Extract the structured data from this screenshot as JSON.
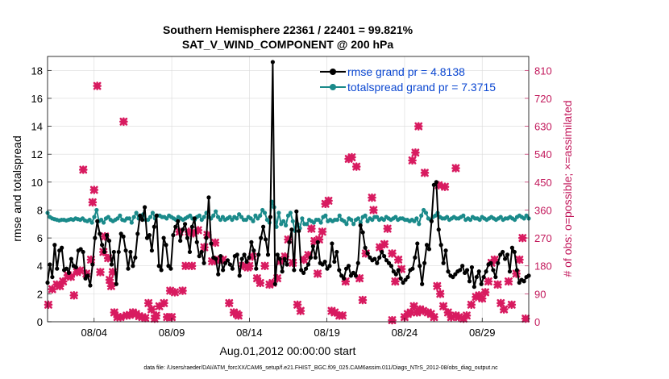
{
  "chart_data": {
    "type": "line",
    "title": "Southern Hemisphere 22361 / 22401 = 99.821%",
    "subtitle": "SAT_V_WIND_COMPONENT @ 200 hPa",
    "xlabel": "Aug.01,2012 00:00:00 start",
    "ylabel": "rmse and totalspread",
    "ylabel_right": "# of obs: o=possible; ×=assimilated",
    "footer": "data file: /Users/raeder/DAI/ATM_forcXX/CAM6_setup/f.e21.FHIST_BGC.f09_025.CAM6assim.011/Diags_NTrS_2012-08/obs_diag_output.nc",
    "x_ticks": [
      {
        "day": 4,
        "label": "08/04"
      },
      {
        "day": 9,
        "label": "08/09"
      },
      {
        "day": 14,
        "label": "08/14"
      },
      {
        "day": 19,
        "label": "08/19"
      },
      {
        "day": 24,
        "label": "08/24"
      },
      {
        "day": 29,
        "label": "08/29"
      }
    ],
    "xlim": [
      1,
      32
    ],
    "ylim": [
      0,
      19
    ],
    "y_ticks": [
      0,
      2,
      4,
      6,
      8,
      10,
      12,
      14,
      16,
      18
    ],
    "y2lim": [
      0,
      855
    ],
    "y2_ticks": [
      0,
      90,
      180,
      270,
      360,
      450,
      540,
      630,
      720,
      810
    ],
    "legend_position": "top-right",
    "colors": {
      "rmse": "#000000",
      "spread": "#1a8a8a",
      "obs": "#d81b60",
      "right_axis": "#c2185b",
      "legend_text": "#0b47d1"
    },
    "series": [
      {
        "name": "rmse grand pr = 4.8138",
        "key": "rmse",
        "values": [
          2.8,
          4.1,
          3.2,
          5.5,
          3.8,
          5.1,
          5.3,
          3.7,
          3.8,
          3.5,
          4.5,
          4.0,
          3.9,
          5.1,
          5.2,
          5.0,
          3.1,
          3.3,
          2.6,
          4.1,
          6.0,
          7.2,
          6.3,
          5.5,
          5.0,
          6.2,
          5.8,
          4.1,
          5.0,
          2.7,
          5.0,
          6.3,
          6.1,
          5.1,
          3.8,
          5.0,
          4.0,
          4.6,
          6.3,
          7.6,
          7.3,
          8.2,
          6.0,
          6.2,
          5.1,
          6.8,
          7.6,
          4.0,
          3.7,
          6.0,
          5.5,
          4.0,
          3.8,
          6.2,
          6.8,
          7.2,
          5.8,
          6.6,
          7.0,
          6.0,
          5.0,
          6.8,
          7.4,
          5.7,
          4.7,
          5.0,
          4.2,
          6.0,
          8.9,
          5.6,
          4.6,
          4.5,
          3.4,
          4.7,
          3.7,
          4.2,
          4.4,
          4.1,
          3.8,
          4.7,
          4.8,
          3.3,
          4.5,
          4.8,
          4.3,
          4.6,
          5.7,
          5.1,
          3.8,
          4.8,
          6.0,
          6.8,
          5.9,
          4.8,
          7.5,
          18.6,
          2.7,
          4.8,
          4.5,
          3.6,
          4.5,
          4.1,
          5.7,
          6.6,
          3.7,
          7.9,
          6.5,
          3.7,
          3.5,
          3.8,
          4.1,
          4.6,
          5.4,
          4.6,
          5.7,
          4.2,
          4.1,
          4.3,
          3.8,
          4.0,
          5.6,
          4.3,
          5.0,
          3.7,
          3.3,
          3.1,
          3.8,
          4.0,
          3.3,
          3.5,
          3.3,
          4.2,
          6.9,
          6.4,
          5.3,
          4.9,
          4.6,
          4.4,
          4.5,
          4.2,
          4.6,
          5.0,
          4.7,
          4.4,
          4.2,
          4.0,
          3.6,
          3.4,
          3.7,
          3.1,
          2.8,
          3.0,
          3.2,
          3.7,
          3.8,
          4.6,
          5.6,
          4.0,
          2.7,
          4.2,
          5.5,
          5.2,
          7.2,
          9.8,
          10.0,
          6.6,
          5.5,
          4.2,
          5.1,
          3.6,
          3.3,
          3.2,
          3.4,
          3.6,
          3.7,
          4.0,
          3.5,
          3.7,
          2.9,
          3.9,
          2.5,
          3.2,
          3.6,
          2.7,
          3.2,
          3.6,
          4.1,
          4.2,
          3.7,
          3.2,
          4.2,
          4.8,
          5.0,
          4.5,
          4.8,
          3.6,
          5.3,
          5.0,
          3.7,
          2.8,
          3.0,
          2.9,
          3.2,
          3.3
        ]
      },
      {
        "name": "totalspread grand pr = 7.3715",
        "key": "spread",
        "values": [
          7.8,
          7.5,
          7.4,
          7.35,
          7.3,
          7.25,
          7.3,
          7.3,
          7.25,
          7.3,
          7.35,
          7.3,
          7.4,
          7.35,
          7.3,
          7.4,
          7.25,
          7.2,
          7.3,
          7.1,
          7.5,
          8.0,
          7.2,
          7.3,
          7.1,
          7.4,
          7.5,
          7.3,
          7.2,
          7.3,
          7.4,
          7.6,
          7.3,
          7.25,
          7.4,
          7.4,
          7.1,
          7.5,
          7.8,
          7.4,
          7.6,
          7.7,
          7.3,
          7.3,
          7.5,
          7.8,
          7.4,
          7.6,
          7.6,
          7.5,
          7.5,
          7.4,
          7.6,
          7.5,
          7.4,
          7.3,
          7.5,
          7.4,
          7.3,
          7.4,
          7.5,
          7.6,
          7.4,
          7.3,
          7.5,
          7.6,
          7.3,
          7.5,
          7.8,
          7.5,
          7.4,
          7.6,
          7.9,
          7.5,
          7.3,
          7.5,
          7.3,
          7.4,
          7.5,
          7.3,
          7.5,
          7.4,
          7.7,
          7.5,
          7.3,
          7.3,
          7.5,
          7.4,
          7.2,
          7.6,
          7.4,
          7.6,
          8.0,
          7.8,
          7.3,
          7.1,
          8.6,
          8.2,
          6.8,
          7.8,
          7.0,
          7.2,
          6.9,
          7.6,
          7.8,
          7.2,
          6.5,
          7.0,
          6.7,
          7.4,
          7.0,
          7.0,
          7.3,
          7.2,
          7.1,
          7.3,
          7.3,
          7.1,
          7.5,
          7.6,
          7.2,
          7.3,
          7.2,
          7.3,
          7.3,
          7.6,
          7.3,
          7.2,
          7.0,
          7.4,
          7.3,
          7.0,
          7.3,
          7.4,
          7.1,
          7.5,
          7.6,
          7.2,
          7.4,
          7.3,
          7.5,
          7.5,
          7.3,
          7.4,
          7.3,
          7.5,
          7.4,
          7.3,
          7.4,
          7.5,
          7.3,
          7.4,
          7.4,
          7.3,
          7.3,
          7.2,
          7.3,
          7.2,
          7.4,
          7.0,
          7.6,
          8.0,
          7.8,
          7.4,
          7.3,
          7.5,
          7.6,
          7.8,
          7.5,
          7.4,
          7.4,
          7.5,
          7.3,
          7.4,
          7.5,
          7.4,
          7.4,
          7.5,
          7.6,
          7.3,
          7.4,
          7.3,
          7.5,
          7.4,
          7.4,
          7.3,
          7.5,
          7.4,
          7.3,
          7.4,
          7.5,
          7.4,
          7.3,
          7.4,
          7.5,
          7.3,
          7.4,
          7.4,
          7.5,
          7.4,
          7.3,
          7.5,
          7.6,
          7.5,
          7.4,
          7.6,
          7.4
        ]
      }
    ],
    "obs_assimilated": {
      "name": "# of obs assimilated",
      "points": [
        {
          "day": 1.05,
          "count": 55
        },
        {
          "day": 1.3,
          "count": 105
        },
        {
          "day": 1.6,
          "count": 120
        },
        {
          "day": 1.8,
          "count": 115
        },
        {
          "day": 2.0,
          "count": 130
        },
        {
          "day": 2.3,
          "count": 150
        },
        {
          "day": 2.5,
          "count": 145
        },
        {
          "day": 2.7,
          "count": 85
        },
        {
          "day": 2.9,
          "count": 160
        },
        {
          "day": 3.1,
          "count": 165
        },
        {
          "day": 3.3,
          "count": 490
        },
        {
          "day": 3.5,
          "count": 155
        },
        {
          "day": 3.8,
          "count": 200
        },
        {
          "day": 3.9,
          "count": 385
        },
        {
          "day": 4.0,
          "count": 425
        },
        {
          "day": 4.2,
          "count": 760
        },
        {
          "day": 4.4,
          "count": 160
        },
        {
          "day": 4.6,
          "count": 225
        },
        {
          "day": 4.7,
          "count": 275
        },
        {
          "day": 4.9,
          "count": 205
        },
        {
          "day": 5.0,
          "count": 135
        },
        {
          "day": 5.1,
          "count": 115
        },
        {
          "day": 5.2,
          "count": 160
        },
        {
          "day": 5.3,
          "count": 30
        },
        {
          "day": 5.5,
          "count": 15
        },
        {
          "day": 5.7,
          "count": 15
        },
        {
          "day": 5.9,
          "count": 645
        },
        {
          "day": 6.1,
          "count": 20
        },
        {
          "day": 6.3,
          "count": 22
        },
        {
          "day": 6.5,
          "count": 30
        },
        {
          "day": 6.7,
          "count": 25
        },
        {
          "day": 6.9,
          "count": 18
        },
        {
          "day": 7.1,
          "count": 15
        },
        {
          "day": 7.3,
          "count": 12
        },
        {
          "day": 7.5,
          "count": 60
        },
        {
          "day": 7.7,
          "count": 40
        },
        {
          "day": 7.9,
          "count": 10
        },
        {
          "day": 8.0,
          "count": 20
        },
        {
          "day": 8.2,
          "count": 50
        },
        {
          "day": 8.5,
          "count": 60
        },
        {
          "day": 8.7,
          "count": 15
        },
        {
          "day": 8.9,
          "count": 100
        },
        {
          "day": 9.0,
          "count": 15
        },
        {
          "day": 9.2,
          "count": 95
        },
        {
          "day": 9.5,
          "count": 290
        },
        {
          "day": 9.7,
          "count": 100
        },
        {
          "day": 9.9,
          "count": 180
        },
        {
          "day": 10.1,
          "count": 290
        },
        {
          "day": 10.3,
          "count": 180
        },
        {
          "day": 10.4,
          "count": 285
        },
        {
          "day": 10.7,
          "count": 295
        },
        {
          "day": 11.1,
          "count": 240
        },
        {
          "day": 11.3,
          "count": 280
        },
        {
          "day": 11.6,
          "count": 195
        },
        {
          "day": 11.8,
          "count": 255
        },
        {
          "day": 12.0,
          "count": 200
        },
        {
          "day": 12.3,
          "count": 200
        },
        {
          "day": 12.7,
          "count": 60
        },
        {
          "day": 13.0,
          "count": 30
        },
        {
          "day": 13.2,
          "count": 25
        },
        {
          "day": 13.3,
          "count": 20
        },
        {
          "day": 13.6,
          "count": 180
        },
        {
          "day": 13.9,
          "count": 175
        },
        {
          "day": 14.0,
          "count": 180
        },
        {
          "day": 14.2,
          "count": 210
        },
        {
          "day": 14.5,
          "count": 140
        },
        {
          "day": 14.7,
          "count": 125
        },
        {
          "day": 15.0,
          "count": 180
        },
        {
          "day": 15.3,
          "count": 120
        },
        {
          "day": 15.5,
          "count": 125
        },
        {
          "day": 15.8,
          "count": 140
        },
        {
          "day": 16.0,
          "count": 195
        },
        {
          "day": 16.3,
          "count": 210
        },
        {
          "day": 16.5,
          "count": 265
        },
        {
          "day": 16.8,
          "count": 190
        },
        {
          "day": 17.1,
          "count": 55
        },
        {
          "day": 17.3,
          "count": 35
        },
        {
          "day": 17.5,
          "count": 200
        },
        {
          "day": 17.8,
          "count": 215
        },
        {
          "day": 18.0,
          "count": 300
        },
        {
          "day": 18.2,
          "count": 260
        },
        {
          "day": 18.4,
          "count": 155
        },
        {
          "day": 18.5,
          "count": 265
        },
        {
          "day": 18.7,
          "count": 290
        },
        {
          "day": 18.9,
          "count": 380
        },
        {
          "day": 19.1,
          "count": 390
        },
        {
          "day": 19.3,
          "count": 35
        },
        {
          "day": 19.5,
          "count": 30
        },
        {
          "day": 19.8,
          "count": 20
        },
        {
          "day": 20.0,
          "count": 20
        },
        {
          "day": 20.2,
          "count": 130
        },
        {
          "day": 20.4,
          "count": 525
        },
        {
          "day": 20.6,
          "count": 530
        },
        {
          "day": 20.9,
          "count": 500
        },
        {
          "day": 21.1,
          "count": 140
        },
        {
          "day": 21.3,
          "count": 70
        },
        {
          "day": 21.5,
          "count": 220
        },
        {
          "day": 21.9,
          "count": 400
        },
        {
          "day": 22.0,
          "count": 360
        },
        {
          "day": 22.4,
          "count": 240
        },
        {
          "day": 22.7,
          "count": 250
        },
        {
          "day": 22.9,
          "count": 300
        },
        {
          "day": 23.2,
          "count": 220
        },
        {
          "day": 23.4,
          "count": 130
        },
        {
          "day": 23.6,
          "count": 200
        },
        {
          "day": 23.8,
          "count": 170
        },
        {
          "day": 24.0,
          "count": 15
        },
        {
          "day": 24.2,
          "count": 25
        },
        {
          "day": 24.4,
          "count": 30
        },
        {
          "day": 24.6,
          "count": 50
        },
        {
          "day": 24.8,
          "count": 30
        },
        {
          "day": 25.0,
          "count": 40
        },
        {
          "day": 25.2,
          "count": 35
        },
        {
          "day": 25.5,
          "count": 30
        },
        {
          "day": 25.7,
          "count": 25
        },
        {
          "day": 25.9,
          "count": 15
        },
        {
          "day": 26.1,
          "count": 115
        },
        {
          "day": 26.3,
          "count": 90
        },
        {
          "day": 26.5,
          "count": 50
        },
        {
          "day": 26.8,
          "count": 30
        },
        {
          "day": 27.0,
          "count": 15
        },
        {
          "day": 27.3,
          "count": 20
        },
        {
          "day": 27.5,
          "count": 15
        },
        {
          "day": 27.8,
          "count": 10
        },
        {
          "day": 28.0,
          "count": 20
        },
        {
          "day": 28.3,
          "count": 55
        },
        {
          "day": 28.6,
          "count": 80
        },
        {
          "day": 28.8,
          "count": 85
        },
        {
          "day": 29.0,
          "count": 75
        },
        {
          "day": 29.2,
          "count": 95
        },
        {
          "day": 29.4,
          "count": 130
        },
        {
          "day": 29.6,
          "count": 190
        },
        {
          "day": 29.8,
          "count": 200
        },
        {
          "day": 30.0,
          "count": 120
        },
        {
          "day": 30.2,
          "count": 60
        },
        {
          "day": 30.4,
          "count": 40
        },
        {
          "day": 30.7,
          "count": 130
        },
        {
          "day": 30.9,
          "count": 55
        },
        {
          "day": 31.2,
          "count": 155
        },
        {
          "day": 31.4,
          "count": 200
        },
        {
          "day": 31.6,
          "count": 270
        },
        {
          "day": 31.8,
          "count": 10
        },
        {
          "day": 24.5,
          "count": 520
        },
        {
          "day": 24.7,
          "count": 545
        },
        {
          "day": 25.3,
          "count": 480
        },
        {
          "day": 26.2,
          "count": 440
        },
        {
          "day": 26.6,
          "count": 435
        },
        {
          "day": 27.3,
          "count": 495
        },
        {
          "day": 24.9,
          "count": 630
        },
        {
          "day": 23.2,
          "count": 5
        }
      ]
    }
  }
}
